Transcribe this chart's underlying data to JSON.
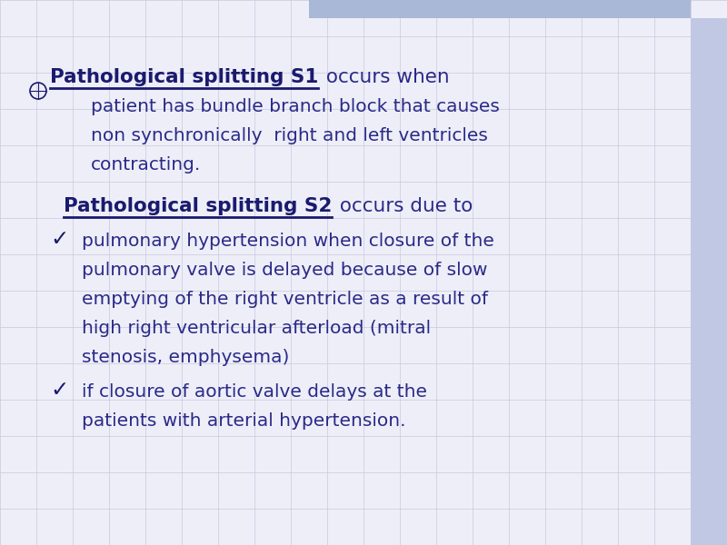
{
  "bg_color": "#eeeef8",
  "grid_color": "#c8c8e0",
  "top_bar_color": "#aab8d8",
  "right_bar_color": "#c0c8e4",
  "text_color_dark": "#1a1a6e",
  "text_color_body": "#2a2a88",
  "heading1_bold": "Pathological splitting S1",
  "heading1_rest": " occurs when",
  "heading2_bold": "Pathological splitting S2",
  "heading2_rest": " occurs due to",
  "h1_lines": [
    "patient has bundle branch block that causes",
    "non synchronically  right and left ventricles",
    "contracting."
  ],
  "bullet1_lines": [
    "pulmonary hypertension when closure of the",
    "pulmonary valve is delayed because of slow",
    "emptying of the right ventricle as a result of",
    "high right ventricular afterload (mitral",
    "stenosis, emphysema)"
  ],
  "bullet2_lines": [
    "if closure of aortic valve delays at the",
    "patients with arterial hypertension."
  ],
  "heading_fontsize": 15.5,
  "body_fontsize": 14.5,
  "checkmark": "✓",
  "figwidth": 8.0,
  "figheight": 6.0,
  "dpi": 100
}
